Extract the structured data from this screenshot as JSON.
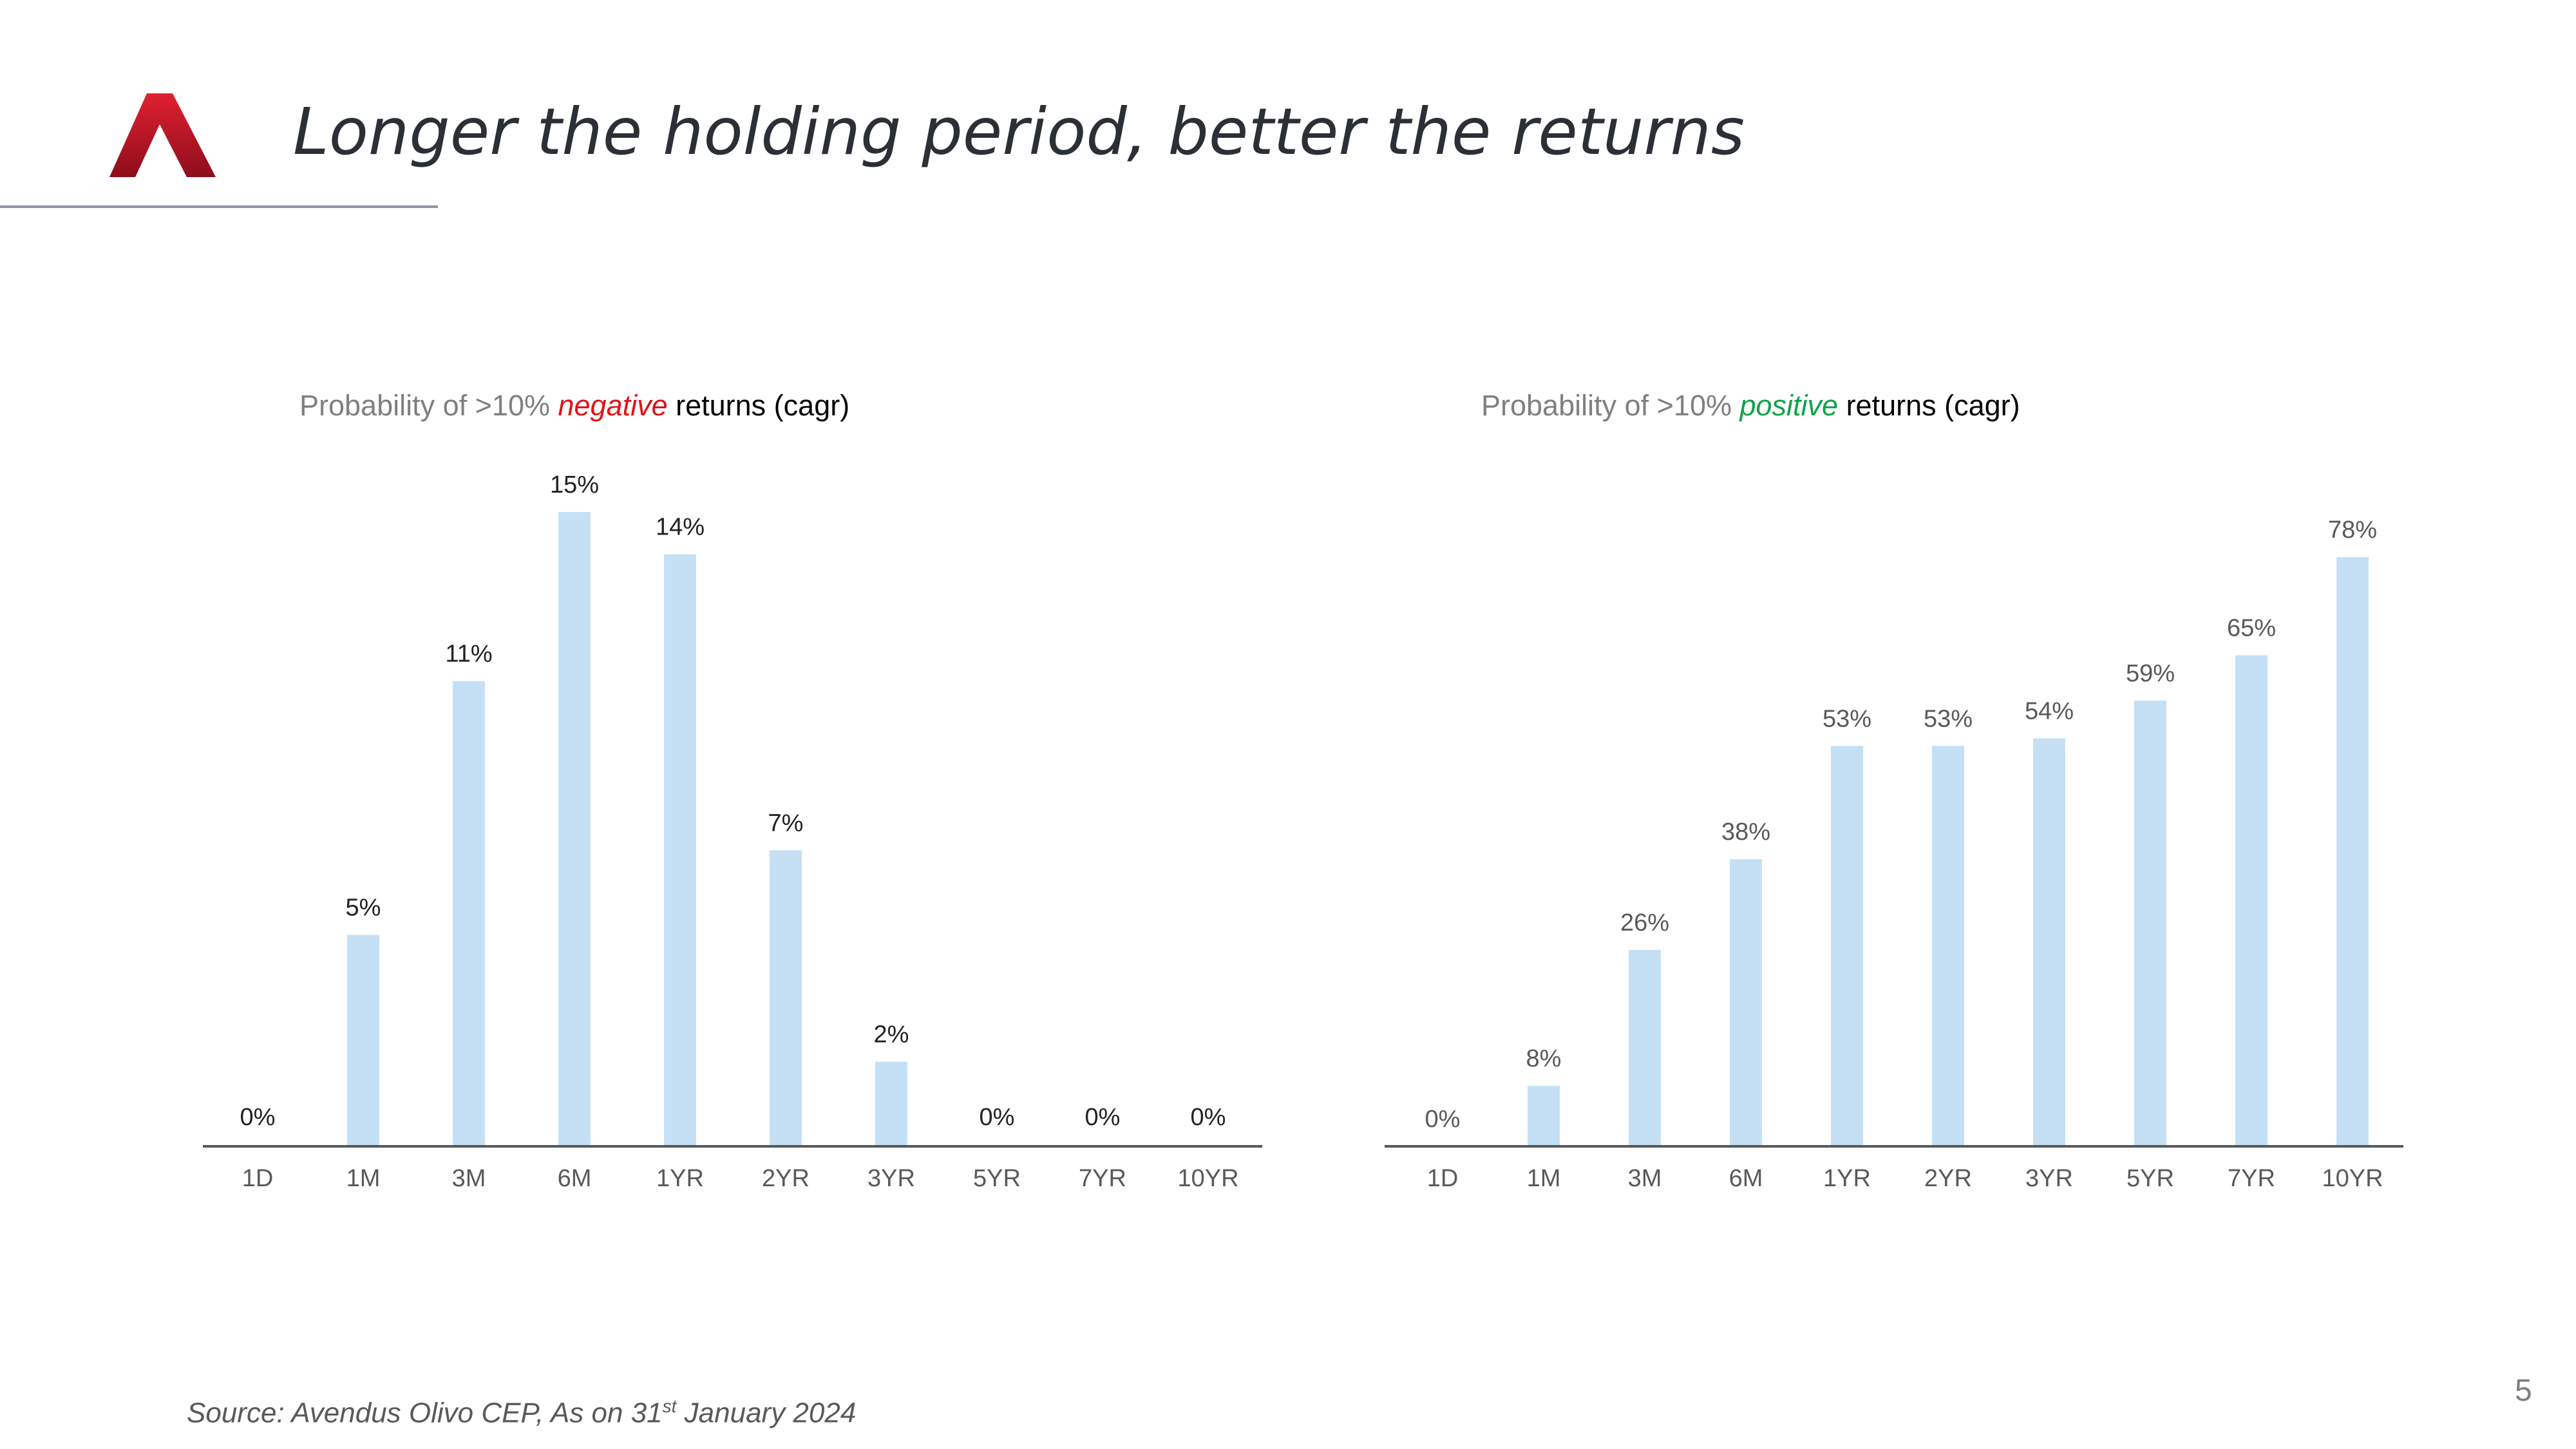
{
  "title": "Longer the holding period, better the returns",
  "source": {
    "prefix": "Source: Avendus Olivo CEP, As on 31",
    "superscript": "st",
    "suffix": " January 2024"
  },
  "page_number": "5",
  "colors": {
    "bar": "#c5e0f5",
    "negative_word": "#e0141b",
    "positive_word": "#12a24a",
    "logo": "#c8102e"
  },
  "charts": [
    {
      "title_parts": {
        "lead": "Probability of >10% ",
        "keyword": "negative",
        "tail": " returns (cagr)"
      }
    },
    {
      "title_parts": {
        "lead": "Probability of >10% ",
        "keyword": "positive",
        "tail": " returns (cagr)"
      }
    }
  ],
  "chart_data": [
    {
      "type": "bar",
      "title": "Probability of >10% negative returns (cagr)",
      "categories": [
        "1D",
        "1M",
        "3M",
        "6M",
        "1YR",
        "2YR",
        "3YR",
        "5YR",
        "7YR",
        "10YR"
      ],
      "values": [
        0,
        5,
        11,
        15,
        14,
        7,
        2,
        0,
        0,
        0
      ],
      "labels": [
        "0%",
        "5%",
        "11%",
        "15%",
        "14%",
        "7%",
        "2%",
        "0%",
        "0%",
        "0%"
      ],
      "ylim": [
        0,
        15
      ],
      "grid": false,
      "legend": "none"
    },
    {
      "type": "bar",
      "title": "Probability of >10% positive returns (cagr)",
      "categories": [
        "1D",
        "1M",
        "3M",
        "6M",
        "1YR",
        "2YR",
        "3YR",
        "5YR",
        "7YR",
        "10YR"
      ],
      "values": [
        0,
        8,
        26,
        38,
        53,
        53,
        54,
        59,
        65,
        78
      ],
      "labels": [
        "0%",
        "8%",
        "26%",
        "38%",
        "53%",
        "53%",
        "54%",
        "59%",
        "65%",
        "78%"
      ],
      "ylim": [
        0,
        78
      ],
      "grid": false,
      "legend": "none"
    }
  ]
}
